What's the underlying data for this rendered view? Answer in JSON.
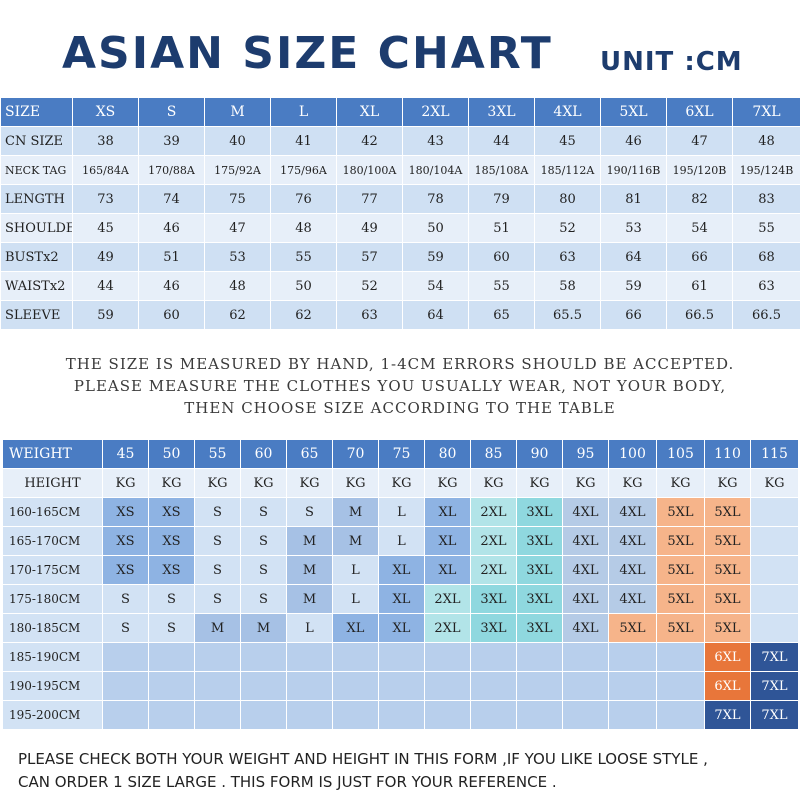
{
  "title": "ASIAN SIZE CHART",
  "unit": "UNIT :CM",
  "size_table": {
    "columns": [
      "SIZE",
      "XS",
      "S",
      "M",
      "L",
      "XL",
      "2XL",
      "3XL",
      "4XL",
      "5XL",
      "6XL",
      "7XL"
    ],
    "rows": [
      [
        "CN SIZE",
        "38",
        "39",
        "40",
        "41",
        "42",
        "43",
        "44",
        "45",
        "46",
        "47",
        "48"
      ],
      [
        "NECK TAG",
        "165/84A",
        "170/88A",
        "175/92A",
        "175/96A",
        "180/100A",
        "180/104A",
        "185/108A",
        "185/112A",
        "190/116B",
        "195/120B",
        "195/124B"
      ],
      [
        "LENGTH",
        "73",
        "74",
        "75",
        "76",
        "77",
        "78",
        "79",
        "80",
        "81",
        "82",
        "83"
      ],
      [
        "SHOULDER",
        "45",
        "46",
        "47",
        "48",
        "49",
        "50",
        "51",
        "52",
        "53",
        "54",
        "55"
      ],
      [
        "BUSTx2",
        "49",
        "51",
        "53",
        "55",
        "57",
        "59",
        "60",
        "63",
        "64",
        "66",
        "68"
      ],
      [
        "WAISTx2",
        "44",
        "46",
        "48",
        "50",
        "52",
        "54",
        "55",
        "58",
        "59",
        "61",
        "63"
      ],
      [
        "SLEEVE",
        "59",
        "60",
        "62",
        "62",
        "63",
        "64",
        "65",
        "65.5",
        "66",
        "66.5",
        "66.5"
      ]
    ]
  },
  "notes": [
    "THE SIZE IS MEASURED BY HAND, 1-4CM ERRORS SHOULD BE ACCEPTED.",
    "PLEASE MEASURE THE CLOTHES YOU  USUALLY WEAR, NOT YOUR BODY,",
    "THEN CHOOSE SIZE ACCORDING TO THE TABLE"
  ],
  "weight_table": {
    "columns": [
      "WEIGHT",
      "45",
      "50",
      "55",
      "60",
      "65",
      "70",
      "75",
      "80",
      "85",
      "90",
      "95",
      "100",
      "105",
      "110",
      "115"
    ],
    "units": [
      "HEIGHT",
      "KG",
      "KG",
      "KG",
      "KG",
      "KG",
      "KG",
      "KG",
      "KG",
      "KG",
      "KG",
      "KG",
      "KG",
      "KG",
      "KG",
      "KG"
    ],
    "rows": [
      [
        "160-165CM",
        "XS",
        "XS",
        "S",
        "S",
        "S",
        "M",
        "L",
        "XL",
        "2XL",
        "3XL",
        "4XL",
        "4XL",
        "5XL",
        "5XL",
        ""
      ],
      [
        "165-170CM",
        "XS",
        "XS",
        "S",
        "S",
        "M",
        "M",
        "L",
        "XL",
        "2XL",
        "3XL",
        "4XL",
        "4XL",
        "5XL",
        "5XL",
        ""
      ],
      [
        "170-175CM",
        "XS",
        "XS",
        "S",
        "S",
        "M",
        "L",
        "XL",
        "XL",
        "2XL",
        "3XL",
        "4XL",
        "4XL",
        "5XL",
        "5XL",
        ""
      ],
      [
        "175-180CM",
        "S",
        "S",
        "S",
        "S",
        "M",
        "L",
        "XL",
        "2XL",
        "3XL",
        "3XL",
        "4XL",
        "4XL",
        "5XL",
        "5XL",
        ""
      ],
      [
        "180-185CM",
        "S",
        "S",
        "M",
        "M",
        "L",
        "XL",
        "XL",
        "2XL",
        "3XL",
        "3XL",
        "4XL",
        "5XL",
        "5XL",
        "5XL",
        ""
      ],
      [
        "185-190CM",
        "",
        "",
        "",
        "",
        "",
        "",
        "",
        "",
        "",
        "",
        "",
        "",
        "",
        "6XL",
        "7XL"
      ],
      [
        "190-195CM",
        "",
        "",
        "",
        "",
        "",
        "",
        "",
        "",
        "",
        "",
        "",
        "",
        "",
        "6XL",
        "7XL"
      ],
      [
        "195-200CM",
        "",
        "",
        "",
        "",
        "",
        "",
        "",
        "",
        "",
        "",
        "",
        "",
        "",
        "7XL",
        "7XL"
      ]
    ]
  },
  "footer": [
    "PLEASE CHECK BOTH YOUR WEIGHT AND HEIGHT IN THIS FORM ,IF YOU LIKE LOOSE STYLE ,",
    "CAN ORDER 1 SIZE LARGE .   THIS FORM IS JUST FOR YOUR REFERENCE ."
  ],
  "colors": {
    "title": "#1d3c6e",
    "header": "#4a7cc3",
    "row_light": "#e7eff9",
    "row_mid": "#cfe0f3",
    "size_6xl": "#e8763a",
    "size_5xl": "#f6b48a",
    "size_7xl": "#2f5597",
    "size_3xl": "#8fd8df"
  }
}
